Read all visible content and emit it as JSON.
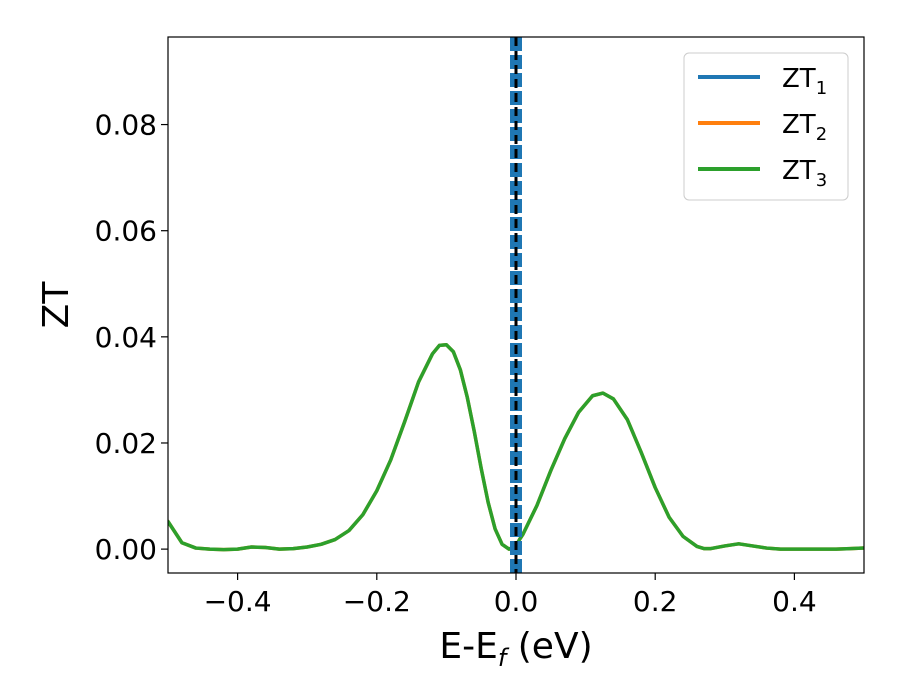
{
  "chart_data": {
    "type": "line",
    "xlabel_main": "E-E",
    "xlabel_sub": "f",
    "xlabel_unit": " (eV)",
    "ylabel": "ZT",
    "xlim": [
      -0.5,
      0.5
    ],
    "ylim": [
      -0.0045,
      0.0965
    ],
    "xticks": [
      -0.4,
      -0.2,
      0.0,
      0.2,
      0.4
    ],
    "xtick_labels": [
      "−0.4",
      "−0.2",
      "0.0",
      "0.2",
      "0.4"
    ],
    "yticks": [
      0.0,
      0.02,
      0.04,
      0.06,
      0.08
    ],
    "ytick_labels": [
      "0.00",
      "0.02",
      "0.04",
      "0.06",
      "0.08"
    ],
    "grid": false,
    "legend_position": "top-right",
    "vline_x": 0.0,
    "series": [
      {
        "name": "ZT",
        "subscript": "1",
        "color": "#1f77b4",
        "style": "dashed-vertical",
        "points": [
          [
            0.0,
            -0.0045
          ],
          [
            0.0,
            0.0965
          ]
        ]
      },
      {
        "name": "ZT",
        "subscript": "2",
        "color": "#ff7f0e",
        "points": [
          [
            -0.5,
            0.0052
          ],
          [
            -0.48,
            0.0012
          ],
          [
            -0.46,
            0.0002
          ],
          [
            -0.44,
            0.0
          ],
          [
            -0.42,
            -0.0001
          ],
          [
            -0.4,
            0.0
          ],
          [
            -0.38,
            0.0004
          ],
          [
            -0.36,
            0.0003
          ],
          [
            -0.34,
            0.0
          ],
          [
            -0.32,
            0.0001
          ],
          [
            -0.3,
            0.0004
          ],
          [
            -0.28,
            0.0009
          ],
          [
            -0.26,
            0.0018
          ],
          [
            -0.24,
            0.0035
          ],
          [
            -0.22,
            0.0065
          ],
          [
            -0.2,
            0.011
          ],
          [
            -0.18,
            0.0168
          ],
          [
            -0.16,
            0.024
          ],
          [
            -0.14,
            0.0315
          ],
          [
            -0.12,
            0.0368
          ],
          [
            -0.11,
            0.0384
          ],
          [
            -0.1,
            0.0385
          ],
          [
            -0.09,
            0.0372
          ],
          [
            -0.08,
            0.0338
          ],
          [
            -0.07,
            0.0286
          ],
          [
            -0.06,
            0.0222
          ],
          [
            -0.05,
            0.0152
          ],
          [
            -0.04,
            0.0088
          ],
          [
            -0.03,
            0.0038
          ],
          [
            -0.02,
            0.0009
          ],
          [
            -0.01,
            0.0
          ],
          [
            0.0,
            0.0006
          ],
          [
            0.005,
            0.0018
          ],
          [
            0.01,
            0.0028
          ],
          [
            0.03,
            0.0082
          ],
          [
            0.05,
            0.0148
          ],
          [
            0.07,
            0.0208
          ],
          [
            0.09,
            0.0258
          ],
          [
            0.11,
            0.0289
          ],
          [
            0.125,
            0.0294
          ],
          [
            0.14,
            0.0283
          ],
          [
            0.16,
            0.0244
          ],
          [
            0.18,
            0.0182
          ],
          [
            0.2,
            0.0116
          ],
          [
            0.22,
            0.006
          ],
          [
            0.24,
            0.0024
          ],
          [
            0.26,
            0.0005
          ],
          [
            0.27,
            0.0001
          ],
          [
            0.28,
            0.0001
          ],
          [
            0.3,
            0.0006
          ],
          [
            0.32,
            0.001
          ],
          [
            0.34,
            0.0006
          ],
          [
            0.36,
            0.0002
          ],
          [
            0.38,
            0.0
          ],
          [
            0.4,
            0.0
          ],
          [
            0.42,
            0.0
          ],
          [
            0.44,
            0.0
          ],
          [
            0.46,
            0.0
          ],
          [
            0.48,
            0.0001
          ],
          [
            0.5,
            0.0002
          ]
        ]
      },
      {
        "name": "ZT",
        "subscript": "3",
        "color": "#2ca02c",
        "points": [
          [
            -0.5,
            0.0052
          ],
          [
            -0.48,
            0.0012
          ],
          [
            -0.46,
            0.0002
          ],
          [
            -0.44,
            0.0
          ],
          [
            -0.42,
            -0.0001
          ],
          [
            -0.4,
            0.0
          ],
          [
            -0.38,
            0.0004
          ],
          [
            -0.36,
            0.0003
          ],
          [
            -0.34,
            0.0
          ],
          [
            -0.32,
            0.0001
          ],
          [
            -0.3,
            0.0004
          ],
          [
            -0.28,
            0.0009
          ],
          [
            -0.26,
            0.0018
          ],
          [
            -0.24,
            0.0035
          ],
          [
            -0.22,
            0.0065
          ],
          [
            -0.2,
            0.011
          ],
          [
            -0.18,
            0.0168
          ],
          [
            -0.16,
            0.024
          ],
          [
            -0.14,
            0.0315
          ],
          [
            -0.12,
            0.0368
          ],
          [
            -0.11,
            0.0384
          ],
          [
            -0.1,
            0.0385
          ],
          [
            -0.09,
            0.0372
          ],
          [
            -0.08,
            0.0338
          ],
          [
            -0.07,
            0.0286
          ],
          [
            -0.06,
            0.0222
          ],
          [
            -0.05,
            0.0152
          ],
          [
            -0.04,
            0.0088
          ],
          [
            -0.03,
            0.0038
          ],
          [
            -0.02,
            0.0009
          ],
          [
            -0.01,
            0.0
          ],
          [
            0.0,
            0.0006
          ],
          [
            0.005,
            0.0018
          ],
          [
            0.01,
            0.0028
          ],
          [
            0.03,
            0.0082
          ],
          [
            0.05,
            0.0148
          ],
          [
            0.07,
            0.0208
          ],
          [
            0.09,
            0.0258
          ],
          [
            0.11,
            0.0289
          ],
          [
            0.125,
            0.0294
          ],
          [
            0.14,
            0.0283
          ],
          [
            0.16,
            0.0244
          ],
          [
            0.18,
            0.0182
          ],
          [
            0.2,
            0.0116
          ],
          [
            0.22,
            0.006
          ],
          [
            0.24,
            0.0024
          ],
          [
            0.26,
            0.0005
          ],
          [
            0.27,
            0.0001
          ],
          [
            0.28,
            0.0001
          ],
          [
            0.3,
            0.0006
          ],
          [
            0.32,
            0.001
          ],
          [
            0.34,
            0.0006
          ],
          [
            0.36,
            0.0002
          ],
          [
            0.38,
            0.0
          ],
          [
            0.4,
            0.0
          ],
          [
            0.42,
            0.0
          ],
          [
            0.44,
            0.0
          ],
          [
            0.46,
            0.0
          ],
          [
            0.48,
            0.0001
          ],
          [
            0.5,
            0.0002
          ]
        ]
      }
    ]
  }
}
